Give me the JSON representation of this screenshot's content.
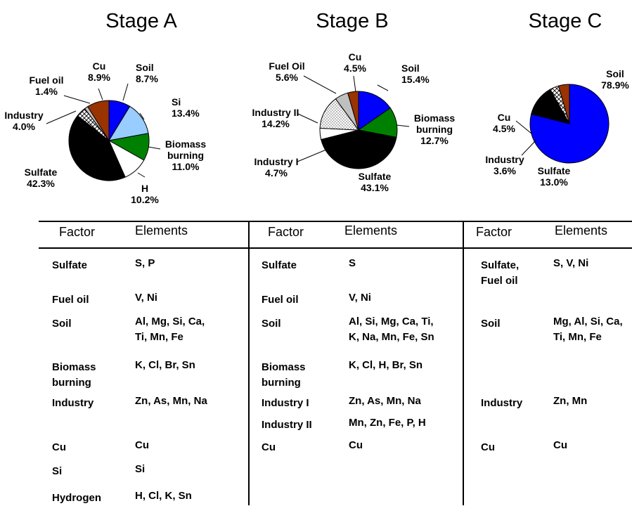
{
  "chart_data": [
    {
      "type": "pie",
      "title": "Stage A",
      "slices": [
        {
          "name": "Soil",
          "value": 8.7,
          "value_label": "8.7%",
          "color": "#0000ff"
        },
        {
          "name": "Si",
          "value": 13.4,
          "value_label": "13.4%",
          "color": "#99ccff"
        },
        {
          "name": "Biomass\nburning",
          "value": 11.0,
          "value_label": "11.0%",
          "color": "#008000"
        },
        {
          "name": "H",
          "value": 10.2,
          "value_label": "10.2%",
          "color": "#ffffff"
        },
        {
          "name": "Sulfate",
          "value": 42.3,
          "value_label": "42.3%",
          "color": "#000000"
        },
        {
          "name": "Industry",
          "value": 4.0,
          "value_label": "4.0%",
          "color": "#ffffff",
          "pattern": "crosshatch"
        },
        {
          "name": "Fuel oil",
          "value": 1.4,
          "value_label": "1.4%",
          "color": "#c0c0c0"
        },
        {
          "name": "Cu",
          "value": 8.9,
          "value_label": "8.9%",
          "color": "#993300"
        }
      ]
    },
    {
      "type": "pie",
      "title": "Stage B",
      "slices": [
        {
          "name": "Soil",
          "value": 15.4,
          "value_label": "15.4%",
          "color": "#0000ff"
        },
        {
          "name": "Biomass\nburning",
          "value": 12.7,
          "value_label": "12.7%",
          "color": "#008000"
        },
        {
          "name": "Sulfate",
          "value": 43.1,
          "value_label": "43.1%",
          "color": "#000000"
        },
        {
          "name": "Industry I",
          "value": 4.7,
          "value_label": "4.7%",
          "color": "#ffffff"
        },
        {
          "name": "Industry II",
          "value": 14.2,
          "value_label": "14.2%",
          "color": "#ffffff",
          "pattern": "dots"
        },
        {
          "name": "Fuel Oil",
          "value": 5.6,
          "value_label": "5.6%",
          "color": "#c0c0c0"
        },
        {
          "name": "Cu",
          "value": 4.5,
          "value_label": "4.5%",
          "color": "#993300"
        }
      ]
    },
    {
      "type": "pie",
      "title": "Stage C",
      "slices": [
        {
          "name": "Soil",
          "value": 78.9,
          "value_label": "78.9%",
          "color": "#0000ff"
        },
        {
          "name": "Sulfate",
          "value": 13.0,
          "value_label": "13.0%",
          "color": "#000000"
        },
        {
          "name": "Industry",
          "value": 3.6,
          "value_label": "3.6%",
          "color": "#ffffff",
          "pattern": "crosshatch"
        },
        {
          "name": "Cu",
          "value": 4.5,
          "value_label": "4.5%",
          "color": "#993300"
        }
      ]
    }
  ],
  "table": {
    "header_factor": "Factor",
    "header_elements": "Elements",
    "stages": [
      {
        "rows": [
          {
            "factor": "Sulfate",
            "elements": "S, P"
          },
          {
            "factor": "Fuel oil",
            "elements": "V, Ni"
          },
          {
            "factor": "Soil",
            "elements": "Al, Mg, Si, Ca,\nTi, Mn, Fe"
          },
          {
            "factor": "Biomass\nburning",
            "elements": "K, Cl, Br, Sn"
          },
          {
            "factor": "Industry",
            "elements": "Zn, As, Mn, Na"
          },
          {
            "factor": "Cu",
            "elements": "Cu"
          },
          {
            "factor": "Si",
            "elements": "Si"
          },
          {
            "factor": "Hydrogen",
            "elements": "H, Cl, K, Sn"
          }
        ]
      },
      {
        "rows": [
          {
            "factor": "Sulfate",
            "elements": "S"
          },
          {
            "factor": "Fuel oil",
            "elements": "V, Ni"
          },
          {
            "factor": "Soil",
            "elements": "Al, Si, Mg, Ca, Ti,\nK, Na, Mn, Fe, Sn"
          },
          {
            "factor": "Biomass\nburning",
            "elements": "K, Cl, H, Br, Sn"
          },
          {
            "factor": "Industry I",
            "elements": "Zn, As, Mn, Na"
          },
          {
            "factor": "Industry II",
            "elements": "Mn, Zn, Fe, P, H"
          },
          {
            "factor": "Cu",
            "elements": "Cu"
          }
        ]
      },
      {
        "rows": [
          {
            "factor": "Sulfate,\n Fuel oil",
            "elements": "S, V, Ni"
          },
          {
            "factor": "Soil",
            "elements": "Mg, Al, Si, Ca,\nTi, Mn, Fe"
          },
          {
            "factor": "Industry",
            "elements": "Zn, Mn"
          },
          {
            "factor": "Cu",
            "elements": "Cu"
          }
        ]
      }
    ]
  }
}
